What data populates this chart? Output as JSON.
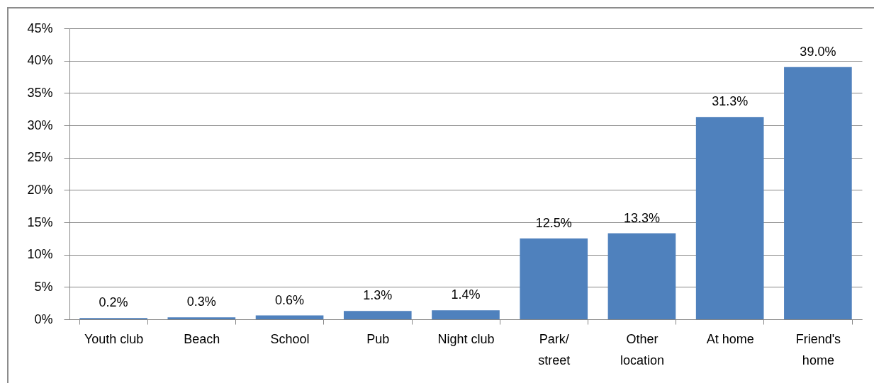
{
  "chart_data": {
    "type": "bar",
    "categories": [
      "Youth club",
      "Beach",
      "School",
      "Pub",
      "Night club",
      "Park/ street",
      "Other location",
      "At home",
      "Friend's home"
    ],
    "values": [
      0.2,
      0.3,
      0.6,
      1.3,
      1.4,
      12.5,
      13.3,
      31.3,
      39.0
    ],
    "value_labels": [
      "0.2%",
      "0.3%",
      "0.6%",
      "1.3%",
      "1.4%",
      "12.5%",
      "13.3%",
      "31.3%",
      "39.0%"
    ],
    "color": "#4f81bd",
    "ylim": [
      0,
      45
    ],
    "yticks": [
      {
        "value": 0,
        "label": "0%"
      },
      {
        "value": 5,
        "label": "5%"
      },
      {
        "value": 10,
        "label": "10%"
      },
      {
        "value": 15,
        "label": "15%"
      },
      {
        "value": 20,
        "label": "20%"
      },
      {
        "value": 25,
        "label": "25%"
      },
      {
        "value": 30,
        "label": "30%"
      },
      {
        "value": 35,
        "label": "35%"
      },
      {
        "value": 40,
        "label": "40%"
      },
      {
        "value": 45,
        "label": "45%"
      }
    ],
    "grid": "y"
  }
}
